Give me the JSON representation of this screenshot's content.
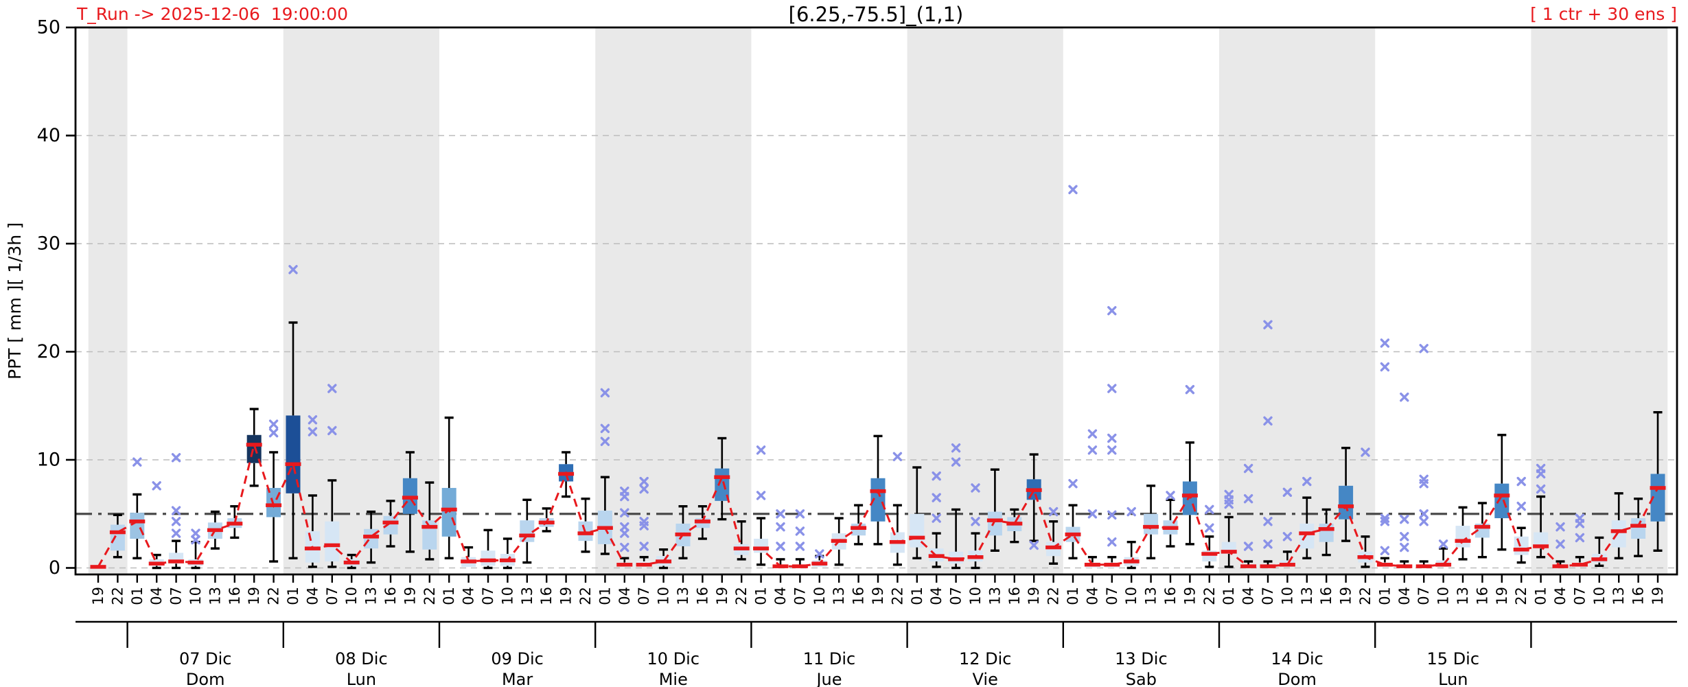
{
  "header": {
    "t_run": "T_Run -> 2025-12-06  19:00:00",
    "title": "[6.25,-75.5]_(1,1)",
    "ens_label": "[ 1 ctr + 30 ens ]"
  },
  "chart_data": {
    "type": "box",
    "title": "[6.25,-75.5]_(1,1)",
    "ylabel": "PPT  [ mm ][ 1/3h ]",
    "yticks": [
      0,
      10,
      20,
      30,
      40,
      50
    ],
    "ylim": [
      -0.6,
      50
    ],
    "ref_value": 5,
    "grid": "dashed horizontal every 10, dash-dot reference at 5",
    "legend_position": "none",
    "colors": {
      "red": "#e8191d",
      "outlier": "#8a92e8",
      "band": "#e9e9e9",
      "grid": "#bcbcbc",
      "ref_line": "#4a4a4a",
      "whisker": "#000000",
      "box_palette": [
        "#e9f1fa",
        "#d6e6f5",
        "#b9d5ee",
        "#9cc3e3",
        "#74abd7",
        "#4587c5",
        "#2e6db4",
        "#1c4f97",
        "#16355f"
      ]
    },
    "days": [
      {
        "date": "07 Dic",
        "dow": "Dom"
      },
      {
        "date": "08 Dic",
        "dow": "Lun"
      },
      {
        "date": "09 Dic",
        "dow": "Mar"
      },
      {
        "date": "10 Dic",
        "dow": "Mie"
      },
      {
        "date": "11 Dic",
        "dow": "Jue"
      },
      {
        "date": "12 Dic",
        "dow": "Vie"
      },
      {
        "date": "13 Dic",
        "dow": "Sab"
      },
      {
        "date": "14 Dic",
        "dow": "Dom"
      },
      {
        "date": "15 Dic",
        "dow": "Lun"
      }
    ],
    "points": [
      {
        "t": "19",
        "w": [
          0.1,
          0.1,
          0.1,
          0.1,
          0.1
        ],
        "c": -1,
        "o": []
      },
      {
        "t": "22",
        "w": [
          1.0,
          1.6,
          3.3,
          4.0,
          4.9
        ],
        "c": 2,
        "o": []
      },
      {
        "t": "01",
        "w": [
          0.9,
          2.7,
          4.3,
          5.1,
          6.8
        ],
        "c": 3,
        "o": [
          9.8
        ]
      },
      {
        "t": "04",
        "w": [
          0,
          0.2,
          0.4,
          0.8,
          1.2
        ],
        "c": 1,
        "o": [
          7.6
        ]
      },
      {
        "t": "07",
        "w": [
          0,
          0.4,
          0.6,
          1.4,
          2.5
        ],
        "c": 1,
        "o": [
          10.2,
          5.3,
          4.3,
          3.2
        ]
      },
      {
        "t": "10",
        "w": [
          0,
          0.2,
          0.5,
          0.8,
          2.4
        ],
        "c": 1,
        "o": [
          3.2,
          2.6
        ]
      },
      {
        "t": "13",
        "w": [
          1.8,
          2.7,
          3.5,
          4.2,
          5.2
        ],
        "c": 2,
        "o": []
      },
      {
        "t": "16",
        "w": [
          2.8,
          3.7,
          4.1,
          4.6,
          5.7
        ],
        "c": 2,
        "o": []
      },
      {
        "t": "19",
        "w": [
          7.6,
          9.7,
          11.4,
          12.3,
          14.7
        ],
        "c": 8,
        "o": []
      },
      {
        "t": "22",
        "w": [
          0.6,
          4.7,
          5.8,
          7.4,
          10.7
        ],
        "c": 4,
        "o": [
          13.3,
          12.5
        ]
      },
      {
        "t": "01",
        "w": [
          0.9,
          6.9,
          9.6,
          14.1,
          22.7
        ],
        "c": 7,
        "o": [
          27.6
        ]
      },
      {
        "t": "04",
        "w": [
          0.1,
          0.5,
          1.8,
          3.4,
          6.7
        ],
        "c": 1,
        "o": [
          13.7,
          12.6
        ]
      },
      {
        "t": "07",
        "w": [
          0.1,
          0.6,
          2.1,
          4.3,
          8.1
        ],
        "c": 1,
        "o": [
          16.6,
          12.7
        ]
      },
      {
        "t": "10",
        "w": [
          0,
          0.2,
          0.5,
          0.8,
          1.2
        ],
        "c": 1,
        "o": []
      },
      {
        "t": "13",
        "w": [
          0.5,
          1.8,
          2.9,
          3.6,
          5.2
        ],
        "c": 2,
        "o": []
      },
      {
        "t": "16",
        "w": [
          2.0,
          3.1,
          4.2,
          4.8,
          6.2
        ],
        "c": 2,
        "o": []
      },
      {
        "t": "19",
        "w": [
          1.5,
          5.0,
          6.5,
          8.3,
          10.7
        ],
        "c": 5,
        "o": []
      },
      {
        "t": "22",
        "w": [
          0.8,
          1.7,
          3.8,
          4.4,
          7.9
        ],
        "c": 2,
        "o": []
      },
      {
        "t": "01",
        "w": [
          0.9,
          2.9,
          5.4,
          7.4,
          13.9
        ],
        "c": 4,
        "o": []
      },
      {
        "t": "04",
        "w": [
          0,
          0.1,
          0.6,
          1.0,
          1.9
        ],
        "c": 1,
        "o": []
      },
      {
        "t": "07",
        "w": [
          0,
          0.2,
          0.7,
          1.6,
          3.5
        ],
        "c": 1,
        "o": []
      },
      {
        "t": "10",
        "w": [
          0,
          0.2,
          0.7,
          1.3,
          2.7
        ],
        "c": 1,
        "o": []
      },
      {
        "t": "13",
        "w": [
          0.5,
          2.4,
          3.0,
          4.4,
          6.3
        ],
        "c": 2,
        "o": []
      },
      {
        "t": "16",
        "w": [
          3.4,
          3.8,
          4.2,
          4.6,
          5.5
        ],
        "c": 2,
        "o": []
      },
      {
        "t": "19",
        "w": [
          6.6,
          8.0,
          8.7,
          9.6,
          10.7
        ],
        "c": 6,
        "o": []
      },
      {
        "t": "22",
        "w": [
          1.5,
          2.5,
          3.2,
          4.3,
          6.4
        ],
        "c": 2,
        "o": []
      },
      {
        "t": "01",
        "w": [
          1.3,
          2.2,
          3.7,
          5.3,
          8.4
        ],
        "c": 2,
        "o": [
          16.2,
          12.9,
          11.7
        ]
      },
      {
        "t": "04",
        "w": [
          0,
          0.1,
          0.3,
          0.5,
          0.9
        ],
        "c": 0,
        "o": [
          7.1,
          6.6,
          5.1,
          3.8,
          3.2,
          1.9
        ]
      },
      {
        "t": "07",
        "w": [
          0,
          0.1,
          0.3,
          0.6,
          1.0
        ],
        "c": 0,
        "o": [
          8.0,
          7.3,
          4.3,
          3.9,
          2.0
        ]
      },
      {
        "t": "10",
        "w": [
          0,
          0.2,
          0.6,
          1.1,
          1.7
        ],
        "c": 1,
        "o": []
      },
      {
        "t": "13",
        "w": [
          0.9,
          2.0,
          3.1,
          4.1,
          5.7
        ],
        "c": 2,
        "o": []
      },
      {
        "t": "16",
        "w": [
          2.7,
          3.7,
          4.3,
          4.6,
          5.7
        ],
        "c": 2,
        "o": []
      },
      {
        "t": "19",
        "w": [
          4.5,
          6.2,
          8.4,
          9.2,
          12.0
        ],
        "c": 5,
        "o": []
      },
      {
        "t": "22",
        "w": [
          0.8,
          1.2,
          1.8,
          2.2,
          4.3
        ],
        "c": 1,
        "o": []
      },
      {
        "t": "01",
        "w": [
          0.3,
          1.4,
          1.8,
          2.7,
          4.6
        ],
        "c": 1,
        "o": [
          10.9,
          6.7
        ]
      },
      {
        "t": "04",
        "w": [
          0,
          0,
          0.15,
          0.3,
          0.8
        ],
        "c": 0,
        "o": [
          5.0,
          3.8,
          2.0
        ]
      },
      {
        "t": "07",
        "w": [
          0,
          0,
          0.15,
          0.3,
          0.8
        ],
        "c": 0,
        "o": [
          5.0,
          3.4,
          2.0
        ]
      },
      {
        "t": "10",
        "w": [
          0,
          0.1,
          0.4,
          0.7,
          1.1
        ],
        "c": 1,
        "o": [
          1.3
        ]
      },
      {
        "t": "13",
        "w": [
          0.3,
          1.7,
          2.5,
          3.2,
          4.6
        ],
        "c": 1,
        "o": []
      },
      {
        "t": "16",
        "w": [
          2.2,
          3.0,
          3.7,
          4.1,
          5.8
        ],
        "c": 2,
        "o": []
      },
      {
        "t": "19",
        "w": [
          2.2,
          4.3,
          7.1,
          8.3,
          12.2
        ],
        "c": 5,
        "o": []
      },
      {
        "t": "22",
        "w": [
          0.3,
          1.4,
          2.4,
          3.3,
          5.8
        ],
        "c": 1,
        "o": [
          10.3
        ]
      },
      {
        "t": "01",
        "w": [
          0.9,
          1.9,
          2.8,
          5.0,
          9.3
        ],
        "c": 1,
        "o": []
      },
      {
        "t": "04",
        "w": [
          0.1,
          0.6,
          1.1,
          1.8,
          3.2
        ],
        "c": 1,
        "o": [
          8.5,
          6.5,
          4.6
        ]
      },
      {
        "t": "07",
        "w": [
          0,
          0.4,
          0.8,
          1.5,
          5.4
        ],
        "c": 1,
        "o": [
          11.1,
          9.8
        ]
      },
      {
        "t": "10",
        "w": [
          0,
          0.6,
          1.0,
          1.6,
          3.2
        ],
        "c": 1,
        "o": [
          7.4,
          4.3
        ]
      },
      {
        "t": "13",
        "w": [
          1.6,
          3.0,
          4.4,
          5.2,
          9.1
        ],
        "c": 2,
        "o": []
      },
      {
        "t": "16",
        "w": [
          2.4,
          3.4,
          4.1,
          4.7,
          5.4
        ],
        "c": 2,
        "o": []
      },
      {
        "t": "19",
        "w": [
          2.5,
          6.3,
          7.2,
          8.2,
          10.5
        ],
        "c": 6,
        "o": [
          2.1
        ]
      },
      {
        "t": "22",
        "w": [
          0.4,
          1.1,
          1.9,
          2.4,
          4.3
        ],
        "c": 1,
        "o": [
          5.2
        ]
      },
      {
        "t": "01",
        "w": [
          0.9,
          2.4,
          3.1,
          3.8,
          5.8
        ],
        "c": 2,
        "o": [
          35.0,
          7.8
        ]
      },
      {
        "t": "04",
        "w": [
          0,
          0,
          0.3,
          0.5,
          1.0
        ],
        "c": 0,
        "o": [
          12.4,
          10.9,
          5.0
        ]
      },
      {
        "t": "07",
        "w": [
          0,
          0,
          0.3,
          0.5,
          1.0
        ],
        "c": 0,
        "o": [
          23.8,
          16.6,
          12.0,
          10.9,
          4.9,
          2.4
        ]
      },
      {
        "t": "10",
        "w": [
          0,
          0.2,
          0.6,
          1.0,
          2.4
        ],
        "c": 1,
        "o": [
          5.2
        ]
      },
      {
        "t": "13",
        "w": [
          0.9,
          3.1,
          3.8,
          5.0,
          7.6
        ],
        "c": 2,
        "o": []
      },
      {
        "t": "16",
        "w": [
          2.0,
          3.1,
          3.7,
          4.4,
          6.3
        ],
        "c": 2,
        "o": [
          6.7
        ]
      },
      {
        "t": "19",
        "w": [
          2.2,
          4.9,
          6.7,
          8.0,
          11.6
        ],
        "c": 5,
        "o": [
          16.5
        ]
      },
      {
        "t": "22",
        "w": [
          0.1,
          0.6,
          1.3,
          1.6,
          2.9
        ],
        "c": 1,
        "o": [
          5.4,
          3.7
        ]
      },
      {
        "t": "01",
        "w": [
          0.1,
          1.3,
          1.5,
          2.4,
          4.7
        ],
        "c": 1,
        "o": [
          6.8,
          6.3,
          5.9
        ]
      },
      {
        "t": "04",
        "w": [
          0,
          0,
          0.15,
          0.3,
          0.6
        ],
        "c": 0,
        "o": [
          9.2,
          6.4,
          2.0
        ]
      },
      {
        "t": "07",
        "w": [
          0,
          0,
          0.15,
          0.3,
          0.6
        ],
        "c": 0,
        "o": [
          22.5,
          13.6,
          4.3,
          2.2
        ]
      },
      {
        "t": "10",
        "w": [
          0,
          0.1,
          0.3,
          0.7,
          1.5
        ],
        "c": 1,
        "o": [
          7.0,
          2.9
        ]
      },
      {
        "t": "13",
        "w": [
          0.9,
          1.8,
          3.2,
          4.1,
          6.5
        ],
        "c": 1,
        "o": [
          8.0
        ]
      },
      {
        "t": "16",
        "w": [
          1.2,
          2.4,
          3.6,
          4.1,
          5.4
        ],
        "c": 2,
        "o": []
      },
      {
        "t": "19",
        "w": [
          2.5,
          4.5,
          5.7,
          7.6,
          11.1
        ],
        "c": 5,
        "o": []
      },
      {
        "t": "22",
        "w": [
          0.1,
          0.5,
          1.0,
          1.5,
          2.9
        ],
        "c": 1,
        "o": [
          10.7
        ]
      },
      {
        "t": "01",
        "w": [
          0,
          0.1,
          0.3,
          0.5,
          0.9
        ],
        "c": 0,
        "o": [
          20.8,
          18.6,
          4.6,
          4.3,
          1.6
        ]
      },
      {
        "t": "04",
        "w": [
          0,
          0,
          0.15,
          0.3,
          0.6
        ],
        "c": 0,
        "o": [
          15.8,
          4.5,
          2.9,
          1.9
        ]
      },
      {
        "t": "07",
        "w": [
          0,
          0,
          0.15,
          0.3,
          0.6
        ],
        "c": 0,
        "o": [
          20.3,
          8.2,
          7.8,
          5.0,
          4.3
        ]
      },
      {
        "t": "10",
        "w": [
          0,
          0.1,
          0.3,
          0.7,
          1.8
        ],
        "c": 1,
        "o": [
          2.2
        ]
      },
      {
        "t": "13",
        "w": [
          0.8,
          1.9,
          2.5,
          3.9,
          5.6
        ],
        "c": 1,
        "o": []
      },
      {
        "t": "16",
        "w": [
          1.0,
          2.8,
          3.8,
          4.1,
          6.0
        ],
        "c": 2,
        "o": []
      },
      {
        "t": "19",
        "w": [
          1.7,
          4.6,
          6.7,
          7.8,
          12.3
        ],
        "c": 5,
        "o": []
      },
      {
        "t": "22",
        "w": [
          0.5,
          1.2,
          1.7,
          2.9,
          3.7
        ],
        "c": 1,
        "o": [
          8.0,
          5.7
        ]
      },
      {
        "t": "01",
        "w": [
          1.0,
          1.8,
          2.0,
          3.3,
          6.6
        ],
        "c": 1,
        "o": [
          9.2,
          8.7,
          7.3
        ]
      },
      {
        "t": "04",
        "w": [
          0,
          0,
          0.15,
          0.3,
          0.6
        ],
        "c": 0,
        "o": [
          3.8,
          2.2
        ]
      },
      {
        "t": "07",
        "w": [
          0,
          0.1,
          0.3,
          0.5,
          1.0
        ],
        "c": 0,
        "o": [
          4.6,
          4.1,
          2.8
        ]
      },
      {
        "t": "10",
        "w": [
          0.2,
          0.5,
          0.8,
          1.3,
          2.8
        ],
        "c": 1,
        "o": []
      },
      {
        "t": "13",
        "w": [
          0.9,
          1.9,
          3.4,
          4.4,
          6.9
        ],
        "c": 1,
        "o": []
      },
      {
        "t": "16",
        "w": [
          1.1,
          2.7,
          3.9,
          4.6,
          6.4
        ],
        "c": 2,
        "o": []
      },
      {
        "t": "19",
        "w": [
          1.6,
          4.3,
          7.4,
          8.7,
          14.4
        ],
        "c": 5,
        "o": []
      }
    ]
  }
}
